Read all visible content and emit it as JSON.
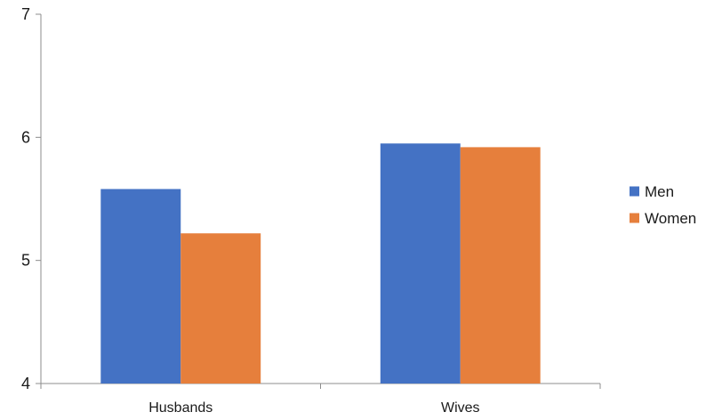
{
  "chart_data": {
    "type": "bar",
    "categories": [
      "Husbands",
      "Wives"
    ],
    "series": [
      {
        "name": "Men",
        "color": "#4472C4",
        "values": [
          5.58,
          5.95
        ]
      },
      {
        "name": "Women",
        "color": "#E67F3C",
        "values": [
          5.22,
          5.92
        ]
      }
    ],
    "ylim": [
      4,
      7
    ],
    "yticks": [
      "4",
      "5",
      "6",
      "7"
    ],
    "grid": false,
    "legend_position": "right",
    "axis_color": "#8c8c8c"
  }
}
